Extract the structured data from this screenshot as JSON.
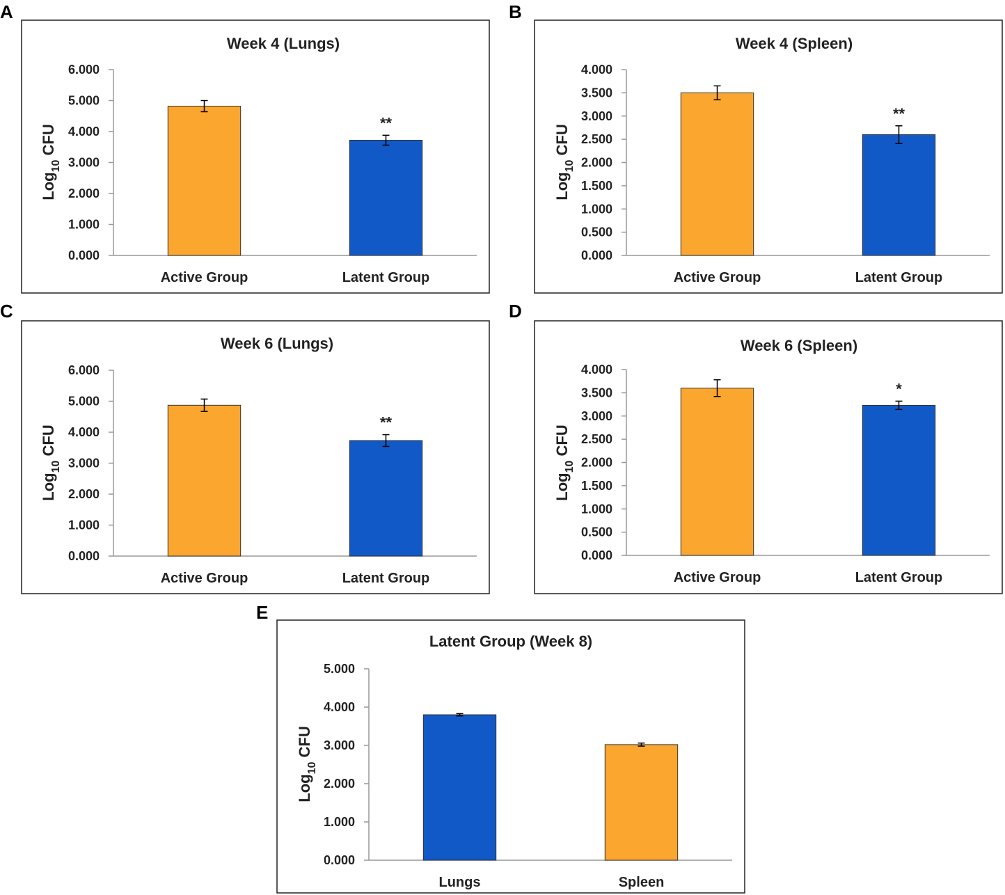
{
  "colors": {
    "active": "#FBA62E",
    "latent": "#1259C8"
  },
  "chart_data": [
    {
      "panel": "A",
      "type": "bar",
      "title": "Week 4 (Lungs)",
      "ylabel": {
        "main": "Log",
        "sub": "10",
        "tail": " CFU"
      },
      "categories": [
        "Active Group",
        "Latent Group"
      ],
      "values": [
        4.82,
        3.72
      ],
      "errors": [
        0.18,
        0.16
      ],
      "bar_colors": [
        "active",
        "latent"
      ],
      "annotations": [
        "",
        "**"
      ],
      "ylim": [
        0,
        6
      ],
      "yticks": [
        "0.000",
        "1.000",
        "2.000",
        "3.000",
        "4.000",
        "5.000",
        "6.000"
      ]
    },
    {
      "panel": "B",
      "type": "bar",
      "title": "Week 4 (Spleen)",
      "ylabel": {
        "main": "Log",
        "sub": "10",
        "tail": " CFU"
      },
      "categories": [
        "Active Group",
        "Latent Group"
      ],
      "values": [
        3.5,
        2.6
      ],
      "errors": [
        0.15,
        0.19
      ],
      "bar_colors": [
        "active",
        "latent"
      ],
      "annotations": [
        "",
        "**"
      ],
      "ylim": [
        0,
        4
      ],
      "yticks": [
        "0.000",
        "0.500",
        "1.000",
        "1.500",
        "2.000",
        "2.500",
        "3.000",
        "3.500",
        "4.000"
      ]
    },
    {
      "panel": "C",
      "type": "bar",
      "title": "Week 6 (Lungs)",
      "ylabel": {
        "main": "Log",
        "sub": "10",
        "tail": " CFU"
      },
      "categories": [
        "Active Group",
        "Latent Group"
      ],
      "values": [
        4.87,
        3.73
      ],
      "errors": [
        0.2,
        0.19
      ],
      "bar_colors": [
        "active",
        "latent"
      ],
      "annotations": [
        "",
        "**"
      ],
      "ylim": [
        0,
        6
      ],
      "yticks": [
        "0.000",
        "1.000",
        "2.000",
        "3.000",
        "4.000",
        "5.000",
        "6.000"
      ]
    },
    {
      "panel": "D",
      "type": "bar",
      "title": "Week 6 (Spleen)",
      "ylabel": {
        "main": "Log",
        "sub": "10",
        "tail": " CFU"
      },
      "categories": [
        "Active Group",
        "Latent Group"
      ],
      "values": [
        3.6,
        3.23
      ],
      "errors": [
        0.18,
        0.09
      ],
      "bar_colors": [
        "active",
        "latent"
      ],
      "annotations": [
        "",
        "*"
      ],
      "ylim": [
        0,
        4
      ],
      "yticks": [
        "0.000",
        "0.500",
        "1.000",
        "1.500",
        "2.000",
        "2.500",
        "3.000",
        "3.500",
        "4.000"
      ]
    },
    {
      "panel": "E",
      "type": "bar",
      "title": "Latent Group (Week 8)",
      "ylabel": {
        "main": "Log",
        "sub": "10",
        "tail": " CFU"
      },
      "categories": [
        "Lungs",
        "Spleen"
      ],
      "values": [
        3.8,
        3.02
      ],
      "errors": [
        0.03,
        0.04
      ],
      "bar_colors": [
        "latent",
        "active"
      ],
      "annotations": [
        "",
        ""
      ],
      "ylim": [
        0,
        5
      ],
      "yticks": [
        "0.000",
        "1.000",
        "2.000",
        "3.000",
        "4.000",
        "5.000"
      ]
    }
  ]
}
